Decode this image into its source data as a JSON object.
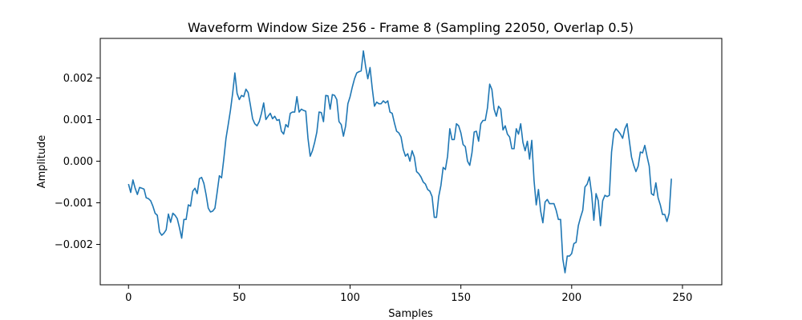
{
  "chart_data": {
    "type": "line",
    "title": "Waveform Window Size 256 - Frame 8 (Sampling 22050, Overlap 0.5)",
    "xlabel": "Samples",
    "ylabel": "Amplitude",
    "xlim": [
      -12.75,
      267.75
    ],
    "ylim": [
      -0.00297,
      0.00295
    ],
    "xticks": [
      0,
      50,
      100,
      150,
      200,
      250
    ],
    "yticks": [
      -0.002,
      -0.001,
      0.0,
      0.001,
      0.002
    ],
    "ytick_labels": [
      "−0.002",
      "−0.001",
      "0.000",
      "0.001",
      "0.002"
    ],
    "grid": false,
    "line_color": "#1f77b4",
    "series": [
      {
        "values": [
          -0.00055,
          -0.00075,
          -0.00045,
          -0.00065,
          -0.0008,
          -0.00063,
          -0.00065,
          -0.00067,
          -0.00088,
          -0.0009,
          -0.00095,
          -0.00108,
          -0.00125,
          -0.0013,
          -0.0017,
          -0.00178,
          -0.00173,
          -0.00165,
          -0.00127,
          -0.00147,
          -0.00125,
          -0.0013,
          -0.00138,
          -0.0016,
          -0.00185,
          -0.0014,
          -0.0014,
          -0.00105,
          -0.00108,
          -0.00072,
          -0.00065,
          -0.00078,
          -0.00042,
          -0.00039,
          -0.00053,
          -0.0008,
          -0.00113,
          -0.00122,
          -0.0012,
          -0.00113,
          -0.00075,
          -0.00035,
          -0.0004,
          5e-05,
          0.00055,
          0.00088,
          0.00122,
          0.00163,
          0.00212,
          0.00163,
          0.00148,
          0.00158,
          0.00155,
          0.00173,
          0.00165,
          0.00135,
          0.00102,
          0.0009,
          0.00085,
          0.00095,
          0.00115,
          0.0014,
          0.001,
          0.00108,
          0.00115,
          0.00102,
          0.00108,
          0.00098,
          0.001,
          0.00072,
          0.00065,
          0.00088,
          0.00082,
          0.00115,
          0.00118,
          0.00118,
          0.00155,
          0.00118,
          0.00125,
          0.00122,
          0.0012,
          0.00055,
          0.00012,
          0.00025,
          0.00045,
          0.0007,
          0.00118,
          0.00117,
          0.00095,
          0.00158,
          0.00157,
          0.00125,
          0.0016,
          0.00158,
          0.00148,
          0.00095,
          0.00088,
          0.0006,
          0.00085,
          0.00138,
          0.00155,
          0.00178,
          0.00198,
          0.00212,
          0.00215,
          0.00217,
          0.00265,
          0.00228,
          0.00198,
          0.00225,
          0.00175,
          0.00132,
          0.00142,
          0.00138,
          0.00138,
          0.00145,
          0.0014,
          0.00145,
          0.00118,
          0.00115,
          0.00092,
          0.00072,
          0.00068,
          0.00058,
          0.00028,
          0.00012,
          0.00018,
          0.0,
          0.00025,
          0.0001,
          -0.00025,
          -0.0003,
          -0.00038,
          -0.0005,
          -0.00055,
          -0.00068,
          -0.00072,
          -0.00085,
          -0.00135,
          -0.00135,
          -0.00085,
          -0.00058,
          -0.00015,
          -0.0002,
          0.00012,
          0.00078,
          0.00052,
          0.00052,
          0.0009,
          0.00085,
          0.00068,
          0.0004,
          0.00035,
          0.0,
          -0.0001,
          0.0002,
          0.0007,
          0.00072,
          0.00048,
          0.0009,
          0.00098,
          0.00098,
          0.00128,
          0.00185,
          0.00172,
          0.00125,
          0.00108,
          0.00132,
          0.00125,
          0.00075,
          0.00085,
          0.00065,
          0.00058,
          0.0003,
          0.0003,
          0.00078,
          0.00065,
          0.0009,
          0.00045,
          0.00025,
          0.00048,
          5e-05,
          0.0005,
          -0.00045,
          -0.00105,
          -0.00068,
          -0.0012,
          -0.00148,
          -0.00098,
          -0.00092,
          -0.00102,
          -0.00102,
          -0.00102,
          -0.00118,
          -0.0014,
          -0.0014,
          -0.00235,
          -0.00268,
          -0.00228,
          -0.00228,
          -0.00222,
          -0.00198,
          -0.00195,
          -0.00155,
          -0.00135,
          -0.00118,
          -0.00062,
          -0.00055,
          -0.00038,
          -0.00078,
          -0.00142,
          -0.00078,
          -0.00095,
          -0.00155,
          -0.00095,
          -0.00082,
          -0.00085,
          -0.00082,
          0.00022,
          0.00068,
          0.00078,
          0.00072,
          0.00065,
          0.00055,
          0.00078,
          0.0009,
          0.0005,
          0.0001,
          -0.0001,
          -0.00025,
          -0.00012,
          0.00022,
          0.0002,
          0.00038,
          0.00012,
          -0.00012,
          -0.00078,
          -0.00082,
          -0.00052,
          -0.00088,
          -0.00105,
          -0.00128,
          -0.00128,
          -0.00145,
          -0.00125,
          -0.00042
        ]
      }
    ]
  }
}
